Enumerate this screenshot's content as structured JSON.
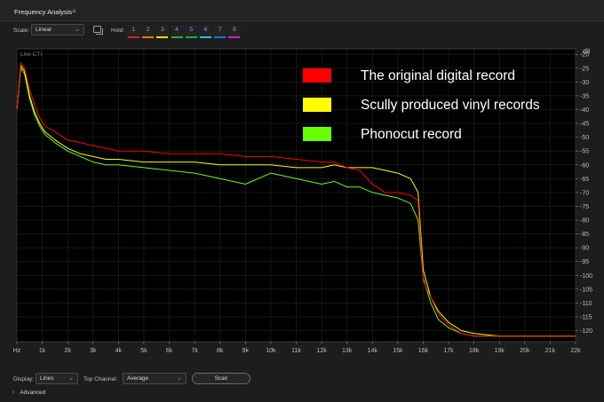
{
  "panel": {
    "title": "Frequency Analysis",
    "menu_icon": "≡"
  },
  "toolbar": {
    "scale_label": "Scale:",
    "scale_value": "Linear",
    "hold_label": "Hold:",
    "hold_buttons": [
      {
        "label": "1",
        "color": "#e02020"
      },
      {
        "label": "2",
        "color": "#e07a10"
      },
      {
        "label": "3",
        "color": "#e8e000"
      },
      {
        "label": "4",
        "color": "#30b030"
      },
      {
        "label": "5",
        "color": "#1fa85a"
      },
      {
        "label": "6",
        "color": "#20c0e0"
      },
      {
        "label": "7",
        "color": "#2070e0"
      },
      {
        "label": "8",
        "color": "#d020d0"
      }
    ]
  },
  "chart_data": {
    "type": "line",
    "overlay_label": "Live CTI",
    "unit_label": "dB",
    "x_unit": "Hz",
    "xlim": [
      0,
      22000
    ],
    "ylim": [
      -124,
      -18
    ],
    "x_ticks": [
      "Hz",
      "1k",
      "2k",
      "3k",
      "4k",
      "5k",
      "6k",
      "7k",
      "8k",
      "9k",
      "10k",
      "11k",
      "12k",
      "13k",
      "14k",
      "15k",
      "16k",
      "17k",
      "18k",
      "19k",
      "20k",
      "21k",
      "22k"
    ],
    "y_ticks": [
      -20,
      -25,
      -30,
      -35,
      -40,
      -45,
      -50,
      -55,
      -60,
      -65,
      -70,
      -75,
      -80,
      -85,
      -90,
      -95,
      -100,
      -105,
      -110,
      -115,
      -120
    ],
    "grid": true,
    "legend_position": "top-right",
    "series": [
      {
        "name": "The original digital record",
        "color": "#ff0000",
        "points": [
          [
            0,
            -40
          ],
          [
            150,
            -23
          ],
          [
            300,
            -25
          ],
          [
            500,
            -33
          ],
          [
            700,
            -38
          ],
          [
            900,
            -43
          ],
          [
            1100,
            -46
          ],
          [
            1500,
            -48
          ],
          [
            2000,
            -51
          ],
          [
            2500,
            -52
          ],
          [
            3000,
            -53
          ],
          [
            3500,
            -54
          ],
          [
            4000,
            -55
          ],
          [
            5000,
            -55
          ],
          [
            6000,
            -56
          ],
          [
            7000,
            -56
          ],
          [
            8000,
            -56
          ],
          [
            9000,
            -57
          ],
          [
            10000,
            -57
          ],
          [
            11000,
            -58
          ],
          [
            12000,
            -59
          ],
          [
            12500,
            -59
          ],
          [
            13000,
            -61
          ],
          [
            13500,
            -62
          ],
          [
            14000,
            -67
          ],
          [
            14500,
            -70
          ],
          [
            15000,
            -70
          ],
          [
            15500,
            -71
          ],
          [
            15800,
            -73
          ],
          [
            16000,
            -102
          ],
          [
            16300,
            -108
          ],
          [
            16600,
            -114
          ],
          [
            17000,
            -118
          ],
          [
            17500,
            -121
          ],
          [
            18000,
            -122
          ],
          [
            19000,
            -122
          ],
          [
            20000,
            -122
          ],
          [
            21000,
            -122
          ],
          [
            22000,
            -122
          ]
        ]
      },
      {
        "name": "Scully produced vinyl records",
        "color": "#ffff00",
        "points": [
          [
            0,
            -40
          ],
          [
            150,
            -24
          ],
          [
            300,
            -26
          ],
          [
            500,
            -35
          ],
          [
            700,
            -41
          ],
          [
            900,
            -45
          ],
          [
            1100,
            -48
          ],
          [
            1500,
            -51
          ],
          [
            2000,
            -54
          ],
          [
            2500,
            -56
          ],
          [
            3000,
            -57
          ],
          [
            3500,
            -58
          ],
          [
            4000,
            -58
          ],
          [
            5000,
            -59
          ],
          [
            6000,
            -59
          ],
          [
            7000,
            -59
          ],
          [
            8000,
            -60
          ],
          [
            9000,
            -60
          ],
          [
            10000,
            -60
          ],
          [
            11000,
            -61
          ],
          [
            12000,
            -61
          ],
          [
            12500,
            -60
          ],
          [
            13000,
            -61
          ],
          [
            13500,
            -61
          ],
          [
            14000,
            -61
          ],
          [
            14500,
            -62
          ],
          [
            15000,
            -63
          ],
          [
            15500,
            -65
          ],
          [
            15800,
            -70
          ],
          [
            16000,
            -98
          ],
          [
            16300,
            -108
          ],
          [
            16600,
            -113
          ],
          [
            17000,
            -117
          ],
          [
            17500,
            -120
          ],
          [
            18000,
            -121
          ],
          [
            19000,
            -122
          ],
          [
            20000,
            -122
          ],
          [
            21000,
            -122
          ],
          [
            22000,
            -122
          ]
        ]
      },
      {
        "name": "Phonocut record",
        "color": "#66ff00",
        "points": [
          [
            0,
            -40
          ],
          [
            150,
            -25
          ],
          [
            300,
            -27
          ],
          [
            500,
            -36
          ],
          [
            700,
            -42
          ],
          [
            900,
            -46
          ],
          [
            1100,
            -49
          ],
          [
            1500,
            -52
          ],
          [
            2000,
            -55
          ],
          [
            2500,
            -57
          ],
          [
            3000,
            -59
          ],
          [
            3500,
            -60
          ],
          [
            4000,
            -60
          ],
          [
            5000,
            -61
          ],
          [
            6000,
            -62
          ],
          [
            7000,
            -63
          ],
          [
            8000,
            -65
          ],
          [
            9000,
            -67
          ],
          [
            10000,
            -63
          ],
          [
            11000,
            -65
          ],
          [
            12000,
            -67
          ],
          [
            12500,
            -66
          ],
          [
            13000,
            -68
          ],
          [
            13500,
            -68
          ],
          [
            14000,
            -70
          ],
          [
            14500,
            -71
          ],
          [
            15000,
            -72
          ],
          [
            15500,
            -74
          ],
          [
            15800,
            -80
          ],
          [
            16000,
            -101
          ],
          [
            16300,
            -110
          ],
          [
            16600,
            -116
          ],
          [
            17000,
            -119
          ],
          [
            17500,
            -121
          ],
          [
            18000,
            -122
          ],
          [
            19000,
            -122
          ],
          [
            20000,
            -122
          ],
          [
            21000,
            -122
          ],
          [
            22000,
            -122
          ]
        ]
      }
    ]
  },
  "bottom": {
    "display_label": "Display:",
    "display_value": "Lines",
    "channel_label": "Top Channel:",
    "channel_value": "Average",
    "scan_label": "Scan",
    "advanced_label": "Advanced"
  }
}
